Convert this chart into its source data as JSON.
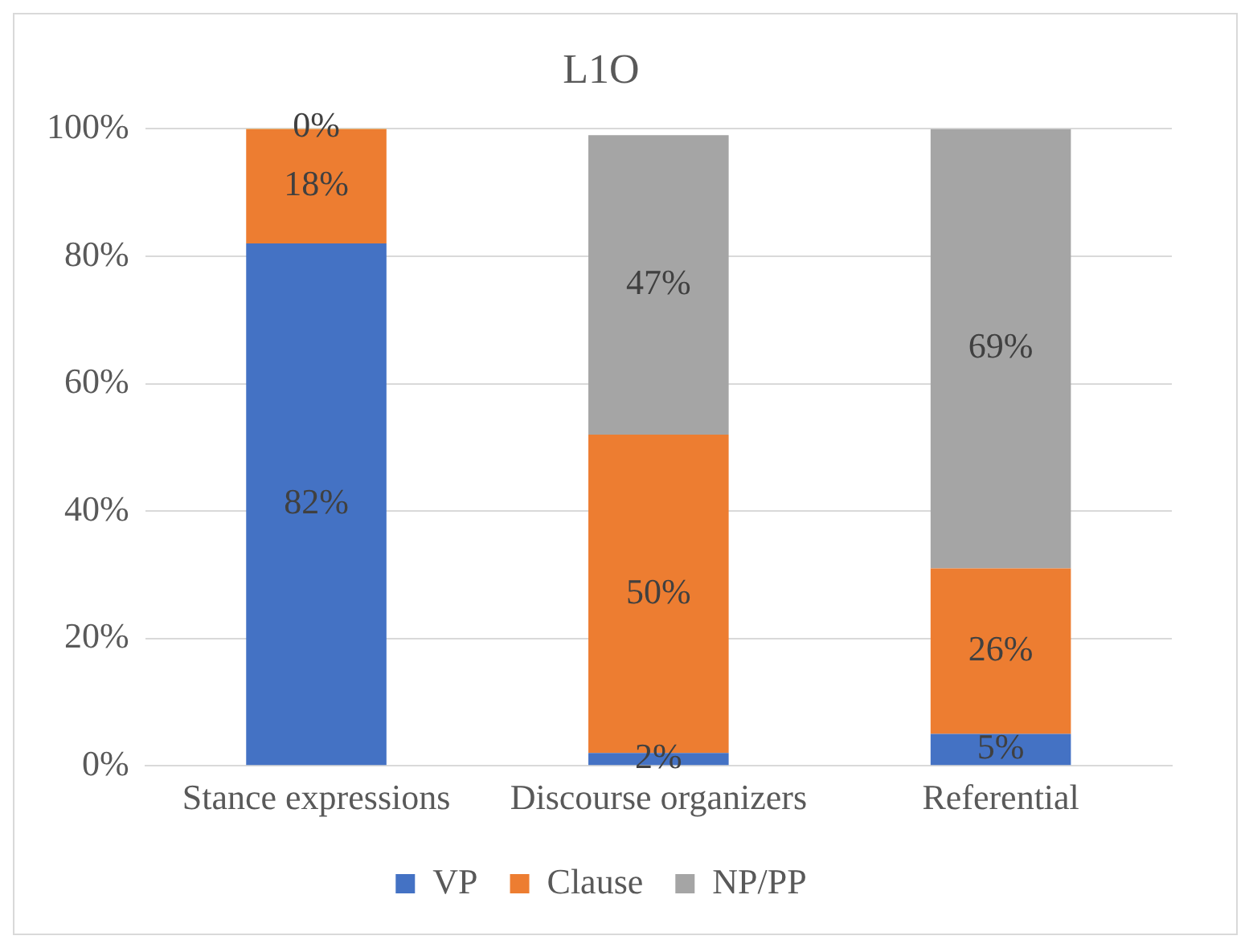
{
  "chart_data": {
    "type": "bar",
    "title": "L1O",
    "categories": [
      "Stance expressions",
      "Discourse organizers",
      "Referential"
    ],
    "stacked": true,
    "series": [
      {
        "name": "VP",
        "color": "#4472c4",
        "values": [
          82,
          2,
          5
        ],
        "value_labels": [
          "82%",
          "2%",
          "5%"
        ]
      },
      {
        "name": "Clause",
        "color": "#ed7d31",
        "values": [
          18,
          50,
          26
        ],
        "value_labels": [
          "18%",
          "50%",
          "26%"
        ]
      },
      {
        "name": "NP/PP",
        "color": "#a5a5a5",
        "values": [
          null,
          47,
          69
        ],
        "value_labels": [
          null,
          "47%",
          "69%"
        ]
      },
      {
        "color": "#ffc000",
        "values": [
          0.4,
          null,
          null
        ],
        "value_labels": [
          "0%",
          null,
          null
        ]
      }
    ],
    "ylim": [
      0,
      100
    ],
    "yticks": [
      {
        "value": 0,
        "label": "0%"
      },
      {
        "value": 20,
        "label": "20%"
      },
      {
        "value": 40,
        "label": "40%"
      },
      {
        "value": 60,
        "label": "60%"
      },
      {
        "value": 80,
        "label": "80%"
      },
      {
        "value": 100,
        "label": "100%"
      }
    ],
    "grid": "y",
    "legend": "bottom"
  }
}
